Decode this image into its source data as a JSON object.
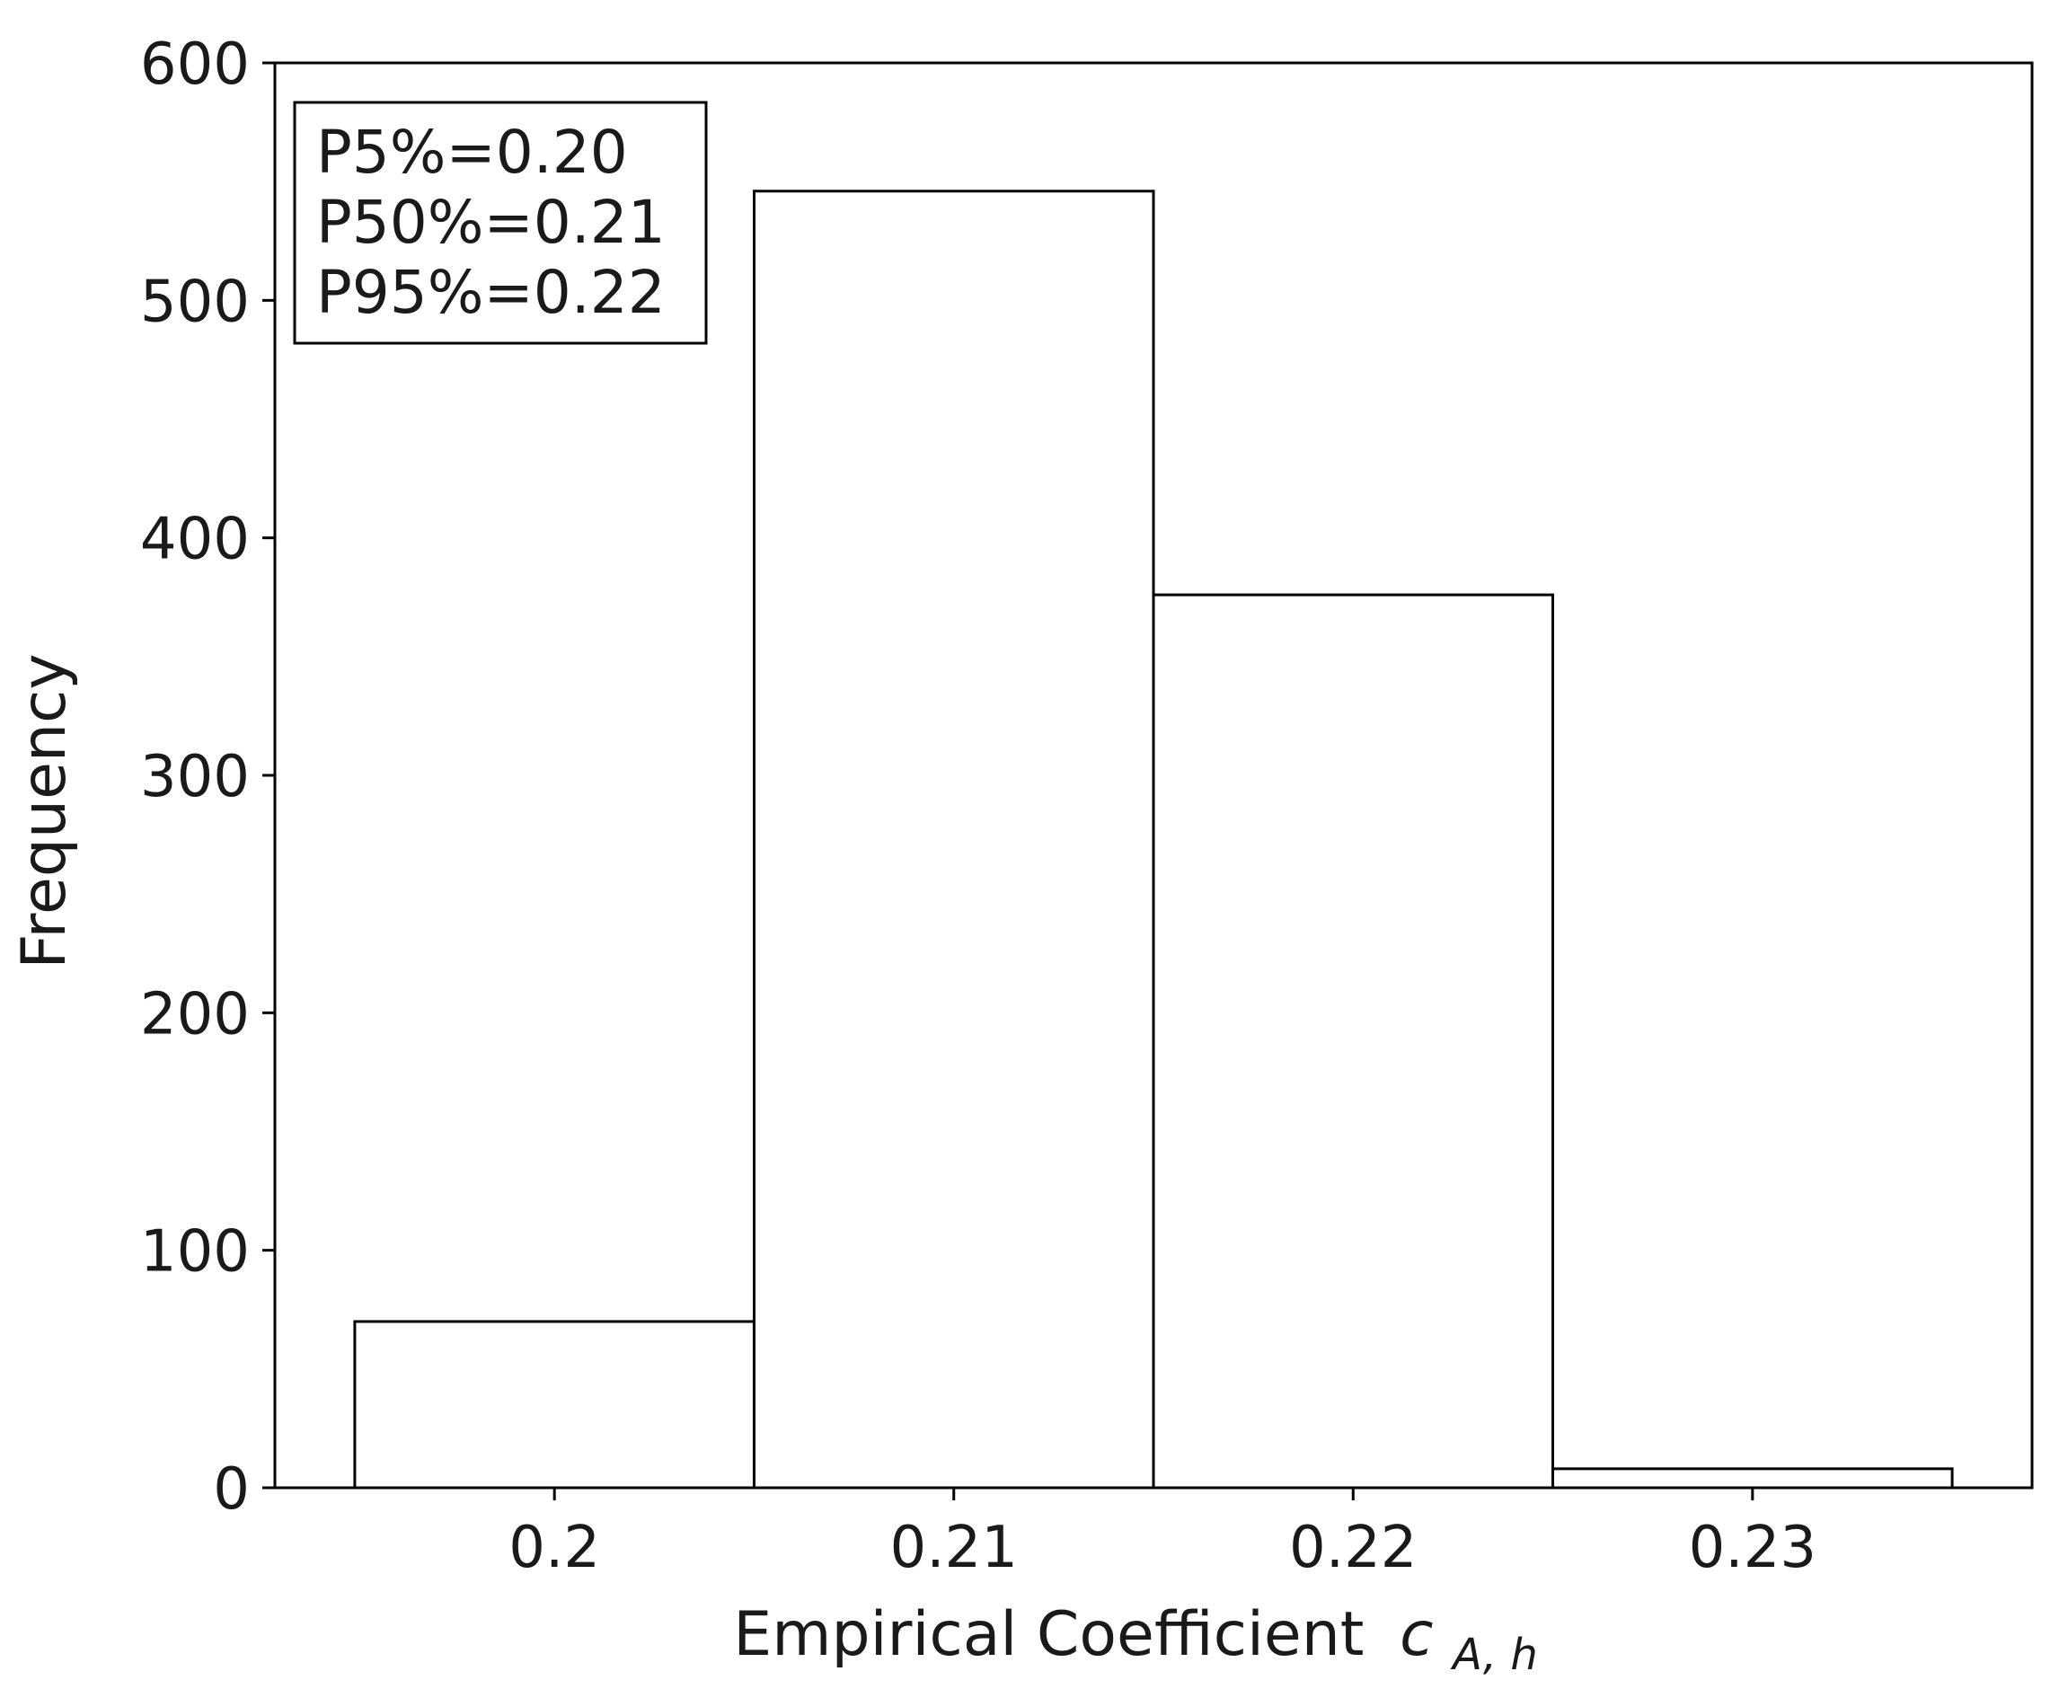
{
  "chart_data": {
    "type": "bar",
    "title": "",
    "xlabel": "Empirical Coefficient",
    "xlabel_math": {
      "base": "c",
      "subscript": "A, h"
    },
    "ylabel": "Frequency",
    "bins": [
      {
        "left": 0.195,
        "right": 0.205,
        "value": 70
      },
      {
        "left": 0.205,
        "right": 0.215,
        "value": 546
      },
      {
        "left": 0.215,
        "right": 0.225,
        "value": 376
      },
      {
        "left": 0.225,
        "right": 0.235,
        "value": 8
      }
    ],
    "xlim": [
      0.193,
      0.237
    ],
    "ylim": [
      0,
      600
    ],
    "xticks": [
      {
        "value": 0.2,
        "label": "0.2"
      },
      {
        "value": 0.21,
        "label": "0.21"
      },
      {
        "value": 0.22,
        "label": "0.22"
      },
      {
        "value": 0.23,
        "label": "0.23"
      }
    ],
    "yticks": [
      {
        "value": 0,
        "label": "0"
      },
      {
        "value": 100,
        "label": "100"
      },
      {
        "value": 200,
        "label": "200"
      },
      {
        "value": 300,
        "label": "300"
      },
      {
        "value": 400,
        "label": "400"
      },
      {
        "value": 500,
        "label": "500"
      },
      {
        "value": 600,
        "label": "600"
      }
    ],
    "annotation_lines": [
      "P5%=0.20",
      "P50%=0.21",
      "P95%=0.22"
    ],
    "grid": false,
    "bar_fill": "#ffffff",
    "bar_edge": "#000000"
  }
}
